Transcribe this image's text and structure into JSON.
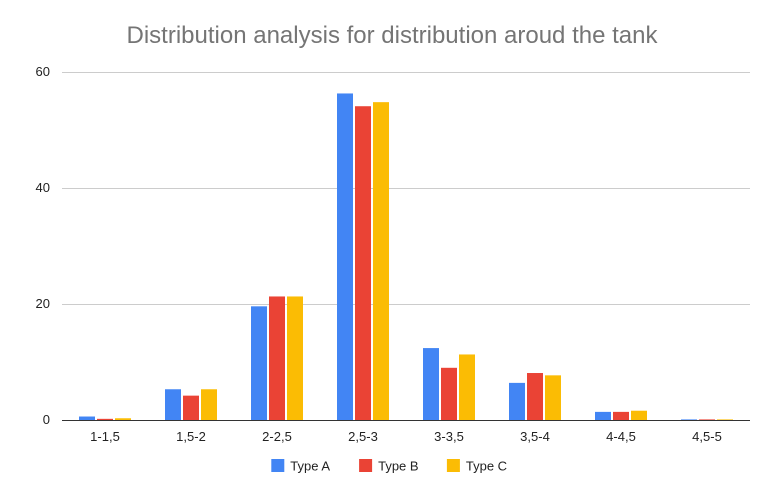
{
  "chart_data": {
    "type": "bar",
    "title": "Distribution analysis for distribution aroud the tank",
    "xlabel": "",
    "ylabel": "",
    "ylim": [
      0,
      60
    ],
    "yticks": [
      0,
      20,
      40,
      60
    ],
    "grid": true,
    "legend_position": "bottom",
    "categories": [
      "1-1,5",
      "1,5-2",
      "2-2,5",
      "2,5-3",
      "3-3,5",
      "3,5-4",
      "4-4,5",
      "4,5-5"
    ],
    "series": [
      {
        "name": "Type A",
        "color": "#4285F4",
        "values": [
          0.6,
          5.3,
          19.6,
          56.3,
          12.4,
          6.4,
          1.4,
          0.1
        ]
      },
      {
        "name": "Type B",
        "color": "#EA4335",
        "values": [
          0.2,
          4.2,
          21.3,
          54.1,
          9.0,
          8.1,
          1.4,
          0.1
        ]
      },
      {
        "name": "Type C",
        "color": "#FBBC04",
        "values": [
          0.3,
          5.3,
          21.3,
          54.8,
          11.3,
          7.7,
          1.6,
          0.1
        ]
      }
    ]
  }
}
